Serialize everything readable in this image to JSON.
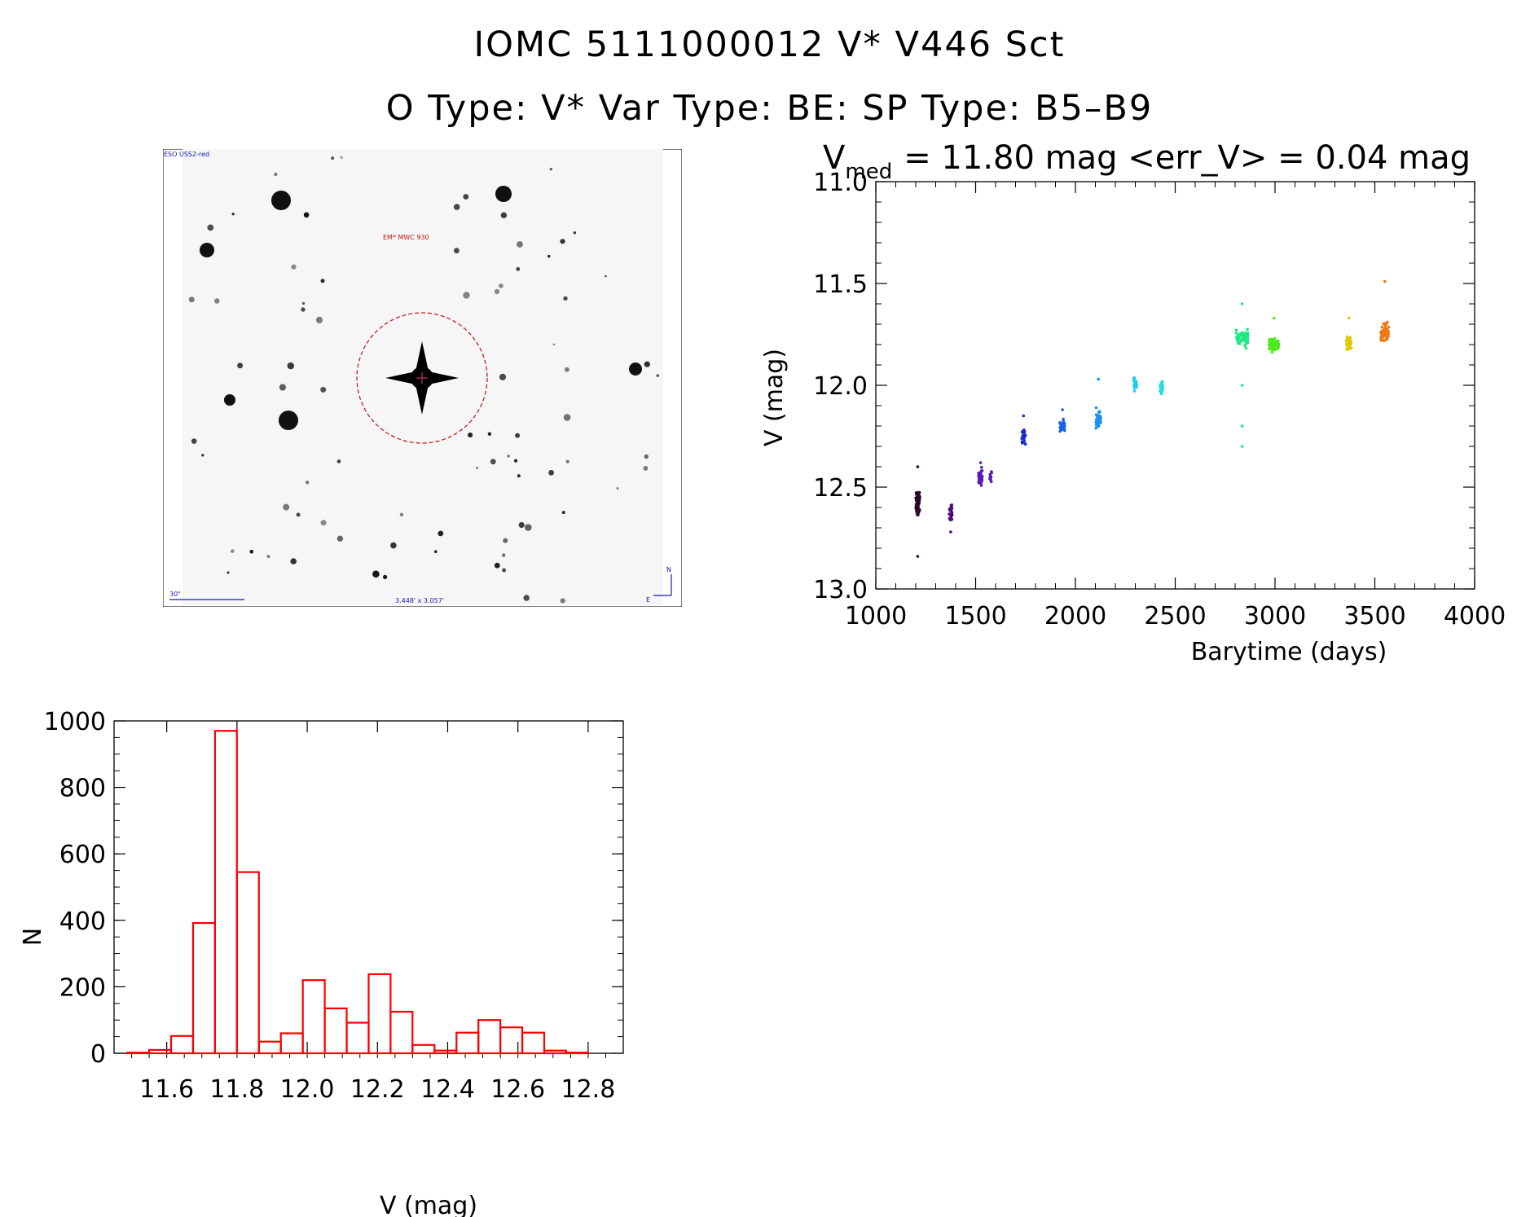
{
  "header": {
    "title": "IOMC 5111000012    V* V446 Sct",
    "subtitle": "O Type: V*   Var Type: BE:   SP Type: B5–B9"
  },
  "sky_image": {
    "survey_label": "ESO USS2-red",
    "object_label": "EM* MWC 930",
    "scale_label": "30\"",
    "fov_label": "3.448' x 3.057'",
    "north_label": "N",
    "east_label": "E"
  },
  "colors": {
    "histogram": "#ff0000",
    "circle": "#c81e1e",
    "label_blue": "#1a1aa8",
    "label_red": "#cc1111"
  },
  "chart_data": [
    {
      "type": "scatter",
      "title_prefix": "V",
      "title_subscript": "med",
      "title_rest": "= 11.80 mag <err_V> = 0.04 mag",
      "xlabel": "Barytime (days)",
      "ylabel": "V (mag)",
      "xlim": [
        1000,
        4000
      ],
      "ylim": [
        13.0,
        11.0
      ],
      "x_ticks": [
        "1000",
        "1500",
        "2000",
        "2500",
        "3000",
        "3500",
        "4000"
      ],
      "y_ticks": [
        "11.0",
        "11.5",
        "12.0",
        "12.5",
        "13.0"
      ],
      "groups": [
        {
          "x": 1210,
          "width": 20,
          "y": 12.58,
          "spread": 0.07,
          "n": 60,
          "color": "#2a0a2a",
          "outliers": [
            12.84,
            12.4
          ]
        },
        {
          "x": 1375,
          "width": 15,
          "y": 12.62,
          "spread": 0.05,
          "n": 30,
          "color": "#4b0a7a",
          "outliers": [
            12.72
          ]
        },
        {
          "x": 1525,
          "width": 20,
          "y": 12.46,
          "spread": 0.05,
          "n": 30,
          "color": "#5a1ab0",
          "outliers": [
            12.38
          ]
        },
        {
          "x": 1575,
          "width": 12,
          "y": 12.45,
          "spread": 0.03,
          "n": 12,
          "color": "#5a1ab0",
          "outliers": []
        },
        {
          "x": 1740,
          "width": 20,
          "y": 12.25,
          "spread": 0.04,
          "n": 25,
          "color": "#1a2ad0",
          "outliers": [
            12.15
          ]
        },
        {
          "x": 1935,
          "width": 25,
          "y": 12.2,
          "spread": 0.04,
          "n": 30,
          "color": "#1a60e8",
          "outliers": [
            12.12
          ]
        },
        {
          "x": 2115,
          "width": 25,
          "y": 12.17,
          "spread": 0.06,
          "n": 35,
          "color": "#1a90f0",
          "outliers": [
            11.97
          ]
        },
        {
          "x": 2300,
          "width": 15,
          "y": 11.99,
          "spread": 0.04,
          "n": 25,
          "color": "#20d0e8",
          "outliers": []
        },
        {
          "x": 2430,
          "width": 15,
          "y": 12.01,
          "spread": 0.05,
          "n": 25,
          "color": "#20e0d8",
          "outliers": []
        },
        {
          "x": 2835,
          "width": 60,
          "y": 11.77,
          "spread": 0.05,
          "n": 70,
          "color": "#20e880",
          "outliers": [
            12.0,
            12.2,
            12.3,
            11.6
          ]
        },
        {
          "x": 2995,
          "width": 50,
          "y": 11.8,
          "spread": 0.04,
          "n": 60,
          "color": "#50e820",
          "outliers": [
            11.67
          ]
        },
        {
          "x": 3370,
          "width": 25,
          "y": 11.79,
          "spread": 0.04,
          "n": 35,
          "color": "#e0c800",
          "outliers": [
            11.67
          ]
        },
        {
          "x": 3550,
          "width": 40,
          "y": 11.74,
          "spread": 0.05,
          "n": 60,
          "color": "#f07810",
          "outliers": [
            11.49
          ]
        }
      ]
    },
    {
      "type": "bar",
      "xlabel": "V (mag)",
      "ylabel": "N",
      "xlim": [
        11.45,
        12.9
      ],
      "ylim": [
        0,
        1000
      ],
      "bin_width": 0.0625,
      "bin_starts": [
        11.4875,
        11.55,
        11.6125,
        11.675,
        11.7375,
        11.8,
        11.8625,
        11.925,
        11.9875,
        12.05,
        12.1125,
        12.175,
        12.2375,
        12.3,
        12.3625,
        12.425,
        12.4875,
        12.55,
        12.6125,
        12.675,
        12.7375
      ],
      "values": [
        2,
        10,
        52,
        392,
        970,
        545,
        35,
        60,
        220,
        135,
        92,
        238,
        125,
        25,
        8,
        62,
        100,
        78,
        62,
        8,
        2
      ],
      "x_ticks": [
        "11.6",
        "11.8",
        "12.0",
        "12.2",
        "12.4",
        "12.6",
        "12.8"
      ],
      "y_ticks": [
        "0",
        "200",
        "400",
        "600",
        "800",
        "1000"
      ]
    }
  ]
}
